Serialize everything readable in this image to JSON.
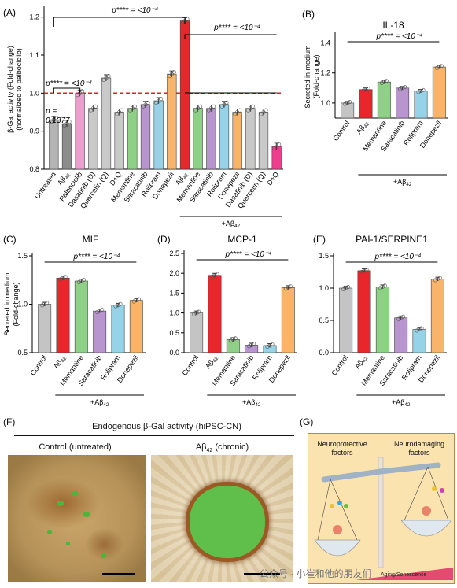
{
  "panels": [
    {
      "id": "A",
      "panel_label": "(A)",
      "ylabel_lines": [
        "β-Gal activity (Fold-change)",
        "(normalized to palbociclib)"
      ],
      "yticks": [
        "0.8",
        "0.9",
        "1.0",
        "1.1",
        "1.2"
      ],
      "ylim": [
        0.8,
        1.22
      ],
      "reference_line": 1.0,
      "annotations": [
        "p**** = <10⁻⁴",
        "p**** = <10⁻⁴",
        "p**** = <10⁻⁴",
        "p =",
        "0.1377"
      ],
      "group_label": "+Aβ42"
    },
    {
      "id": "B",
      "panel_label": "(B)",
      "title": "IL-18",
      "ylabel_lines": [
        "Secreted in medium",
        "(Fold-change)"
      ],
      "yticks": [
        "1.0",
        "1.2",
        "1.4"
      ],
      "ylim": [
        0.9,
        1.45
      ],
      "annotation": "p**** = <10⁻⁴",
      "group_label": "+Aβ42"
    },
    {
      "id": "C",
      "panel_label": "(C)",
      "title": "MIF",
      "ylabel_lines": [
        "Secreted in medium",
        "(Fold-change)"
      ],
      "yticks": [
        "0.5",
        "1.0",
        "1.5"
      ],
      "ylim": [
        0.5,
        1.5
      ],
      "annotation": "p**** = <10⁻⁴",
      "group_label": "+Aβ42"
    },
    {
      "id": "D",
      "panel_label": "(D)",
      "title": "MCP-1",
      "ylabel_lines": [],
      "yticks": [
        "0.0",
        "0.5",
        "1.0",
        "1.5",
        "2.0",
        "2.5"
      ],
      "ylim": [
        0,
        2.5
      ],
      "annotation": "p**** = <10⁻⁴",
      "group_label": "+Aβ42"
    },
    {
      "id": "E",
      "panel_label": "(E)",
      "title": "PAI-1/SERPINE1",
      "ylabel_lines": [],
      "yticks": [
        "0.0",
        "0.5",
        "1.0",
        "1.5"
      ],
      "ylim": [
        0,
        1.5
      ],
      "annotation": "p**** = <10⁻⁴",
      "group_label": "+Aβ42"
    }
  ],
  "chart_data": [
    {
      "type": "bar",
      "panel": "A",
      "categories": [
        "Untreated",
        "Aβ42",
        "Palbociclib",
        "Dasatinib (D)",
        "Quercetin (Q)",
        "D+Q",
        "Memantine",
        "Saracatinib",
        "Rolipram",
        "Donepezil",
        "Aβ42",
        "Memantine",
        "Saracatinib",
        "Rolipram",
        "Donepezil",
        "Dasatinib (D)",
        "Quercetin (Q)",
        "D+Q"
      ],
      "values": [
        0.93,
        0.92,
        1.0,
        0.96,
        1.04,
        0.95,
        0.96,
        0.97,
        0.98,
        1.05,
        1.19,
        0.96,
        0.96,
        0.97,
        0.95,
        0.96,
        0.95,
        0.86
      ],
      "colors": [
        "#b4b4b4",
        "#8c8c8c",
        "#e9a0cf",
        "#c9c9c9",
        "#c9c9c9",
        "#c9c9c9",
        "#8fd087",
        "#b995d0",
        "#96d3e8",
        "#f7b46a",
        "#e8262b",
        "#8fd087",
        "#b995d0",
        "#96d3e8",
        "#f7b46a",
        "#c9c9c9",
        "#c9c9c9",
        "#ee3e8e"
      ],
      "ylim": [
        0.8,
        1.22
      ]
    },
    {
      "type": "bar",
      "panel": "B",
      "categories": [
        "Control",
        "Aβ42",
        "Memantine",
        "Saracatinib",
        "Rolipram",
        "Donepezil"
      ],
      "values": [
        1.0,
        1.09,
        1.14,
        1.1,
        1.08,
        1.24
      ],
      "colors": [
        "#c4c4c4",
        "#e8262b",
        "#8fd087",
        "#b995d0",
        "#96d3e8",
        "#f7b46a"
      ],
      "ylim": [
        0.9,
        1.45
      ]
    },
    {
      "type": "bar",
      "panel": "C",
      "categories": [
        "Control",
        "Aβ42",
        "Memantine",
        "Saracatinib",
        "Rolipram",
        "Donepezil"
      ],
      "values": [
        1.0,
        1.27,
        1.24,
        0.93,
        0.99,
        1.04
      ],
      "colors": [
        "#c4c4c4",
        "#e8262b",
        "#8fd087",
        "#b995d0",
        "#96d3e8",
        "#f7b46a"
      ],
      "ylim": [
        0.5,
        1.5
      ]
    },
    {
      "type": "bar",
      "panel": "D",
      "categories": [
        "Control",
        "Aβ42",
        "Memantine",
        "Saracatinib",
        "Rolipram",
        "Donepezil"
      ],
      "values": [
        1.0,
        1.95,
        0.33,
        0.19,
        0.18,
        1.64
      ],
      "colors": [
        "#c4c4c4",
        "#e8262b",
        "#8fd087",
        "#b995d0",
        "#96d3e8",
        "#f7b46a"
      ],
      "ylim": [
        0,
        2.5
      ]
    },
    {
      "type": "bar",
      "panel": "E",
      "categories": [
        "Control",
        "Aβ42",
        "Memantine",
        "Saracatinib",
        "Rolipram",
        "Donepezil"
      ],
      "values": [
        1.0,
        1.27,
        1.02,
        0.54,
        0.36,
        1.14
      ],
      "colors": [
        "#c4c4c4",
        "#e8262b",
        "#8fd087",
        "#b995d0",
        "#96d3e8",
        "#f7b46a"
      ],
      "ylim": [
        0,
        1.5
      ]
    }
  ],
  "panelF": {
    "panel_label": "(F)",
    "title": "Endogenous β-Gal activity (hiPSC-CN)",
    "left_caption": "Control (untreated)",
    "right_caption": "Aβ42 (chronic)"
  },
  "panelG": {
    "panel_label": "(G)",
    "left_title_lines": [
      "Neuroprotective",
      "factors"
    ],
    "right_title_lines": [
      "Neurodamaging",
      "factors"
    ],
    "bar_label": "Aging/Senescence"
  },
  "watermark": {
    "text": "公众号 · 小崔和他的朋友们"
  }
}
